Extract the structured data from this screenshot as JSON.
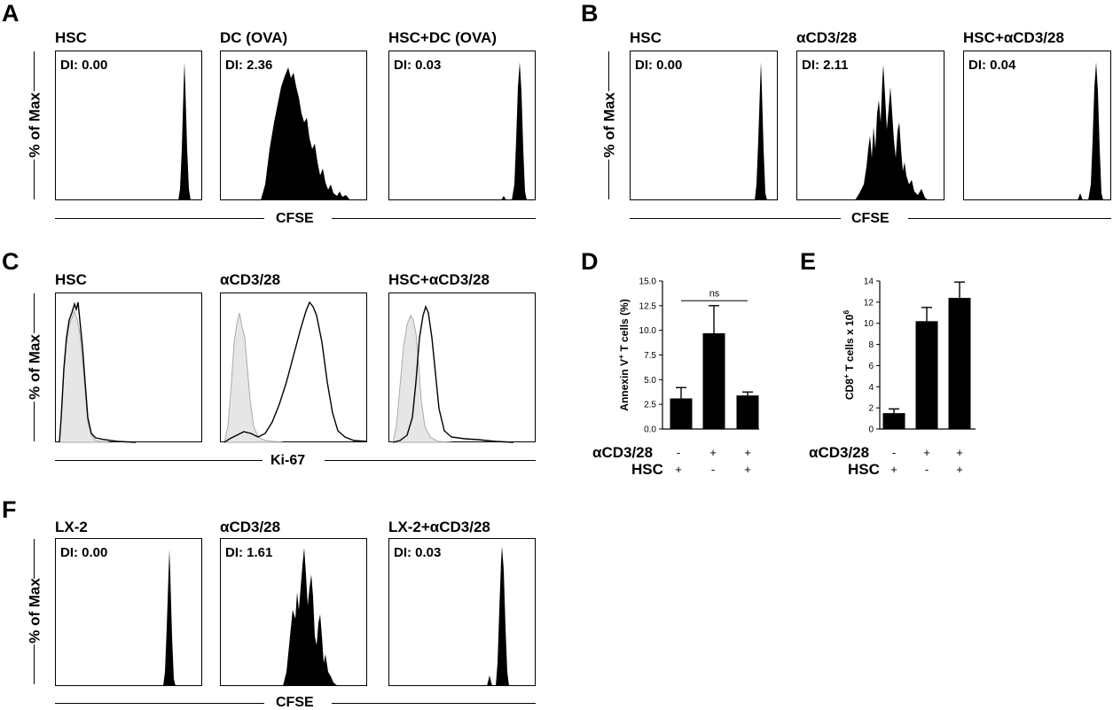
{
  "panels": {
    "A": {
      "letter": "A",
      "axis": "CFSE",
      "ylabel": "% of Max",
      "plots": [
        {
          "title": "HSC",
          "di": "DI: 0.00"
        },
        {
          "title": "DC (OVA)",
          "di": "DI: 2.36"
        },
        {
          "title": "HSC+DC (OVA)",
          "di": "DI: 0.03"
        }
      ]
    },
    "B": {
      "letter": "B",
      "axis": "CFSE",
      "ylabel": "% of Max",
      "plots": [
        {
          "title": "HSC",
          "di": "DI: 0.00"
        },
        {
          "title": "αCD3/28",
          "di": "DI: 2.11"
        },
        {
          "title": "HSC+αCD3/28",
          "di": "DI: 0.04"
        }
      ]
    },
    "C": {
      "letter": "C",
      "axis": "Ki-67",
      "ylabel": "% of Max",
      "plots": [
        {
          "title": "HSC"
        },
        {
          "title": "αCD3/28"
        },
        {
          "title": "HSC+αCD3/28"
        }
      ]
    },
    "F": {
      "letter": "F",
      "axis": "CFSE",
      "ylabel": "% of Max",
      "plots": [
        {
          "title": "LX-2",
          "di": "DI: 0.00"
        },
        {
          "title": "αCD3/28",
          "di": "DI: 1.61"
        },
        {
          "title": "LX-2+αCD3/28",
          "di": "DI: 0.03"
        }
      ]
    },
    "D": {
      "letter": "D"
    },
    "E": {
      "letter": "E"
    }
  },
  "conditions": {
    "row1": "αCD3/28",
    "row2": "HSC",
    "acd": [
      "-",
      "+",
      "+"
    ],
    "hsc": [
      "+",
      "-",
      "+"
    ]
  },
  "chart_data": [
    {
      "type": "bar",
      "panel": "D",
      "ylabel": "Annexin V+ T cells (%)",
      "ylim": [
        0,
        15
      ],
      "yticks": [
        "0.0",
        "2.5",
        "5.0",
        "7.5",
        "10.0",
        "12.5",
        "15.0"
      ],
      "ytick_values": [
        0,
        2.5,
        5,
        7.5,
        10,
        12.5,
        15
      ],
      "categories": [
        "HSC",
        "αCD3/28",
        "HSC+αCD3/28"
      ],
      "values": [
        3.1,
        9.7,
        3.4
      ],
      "errors": [
        1.1,
        2.8,
        0.35
      ],
      "annotation": "ns"
    },
    {
      "type": "bar",
      "panel": "E",
      "ylabel": "CD8+ T cells x 106",
      "ylim": [
        0,
        14
      ],
      "yticks": [
        "0",
        "2",
        "4",
        "6",
        "8",
        "10",
        "12",
        "14"
      ],
      "ytick_values": [
        0,
        2,
        4,
        6,
        8,
        10,
        12,
        14
      ],
      "categories": [
        "HSC",
        "αCD3/28",
        "HSC+αCD3/28"
      ],
      "values": [
        1.5,
        10.2,
        12.4
      ],
      "errors": [
        0.4,
        1.3,
        1.5
      ]
    }
  ]
}
